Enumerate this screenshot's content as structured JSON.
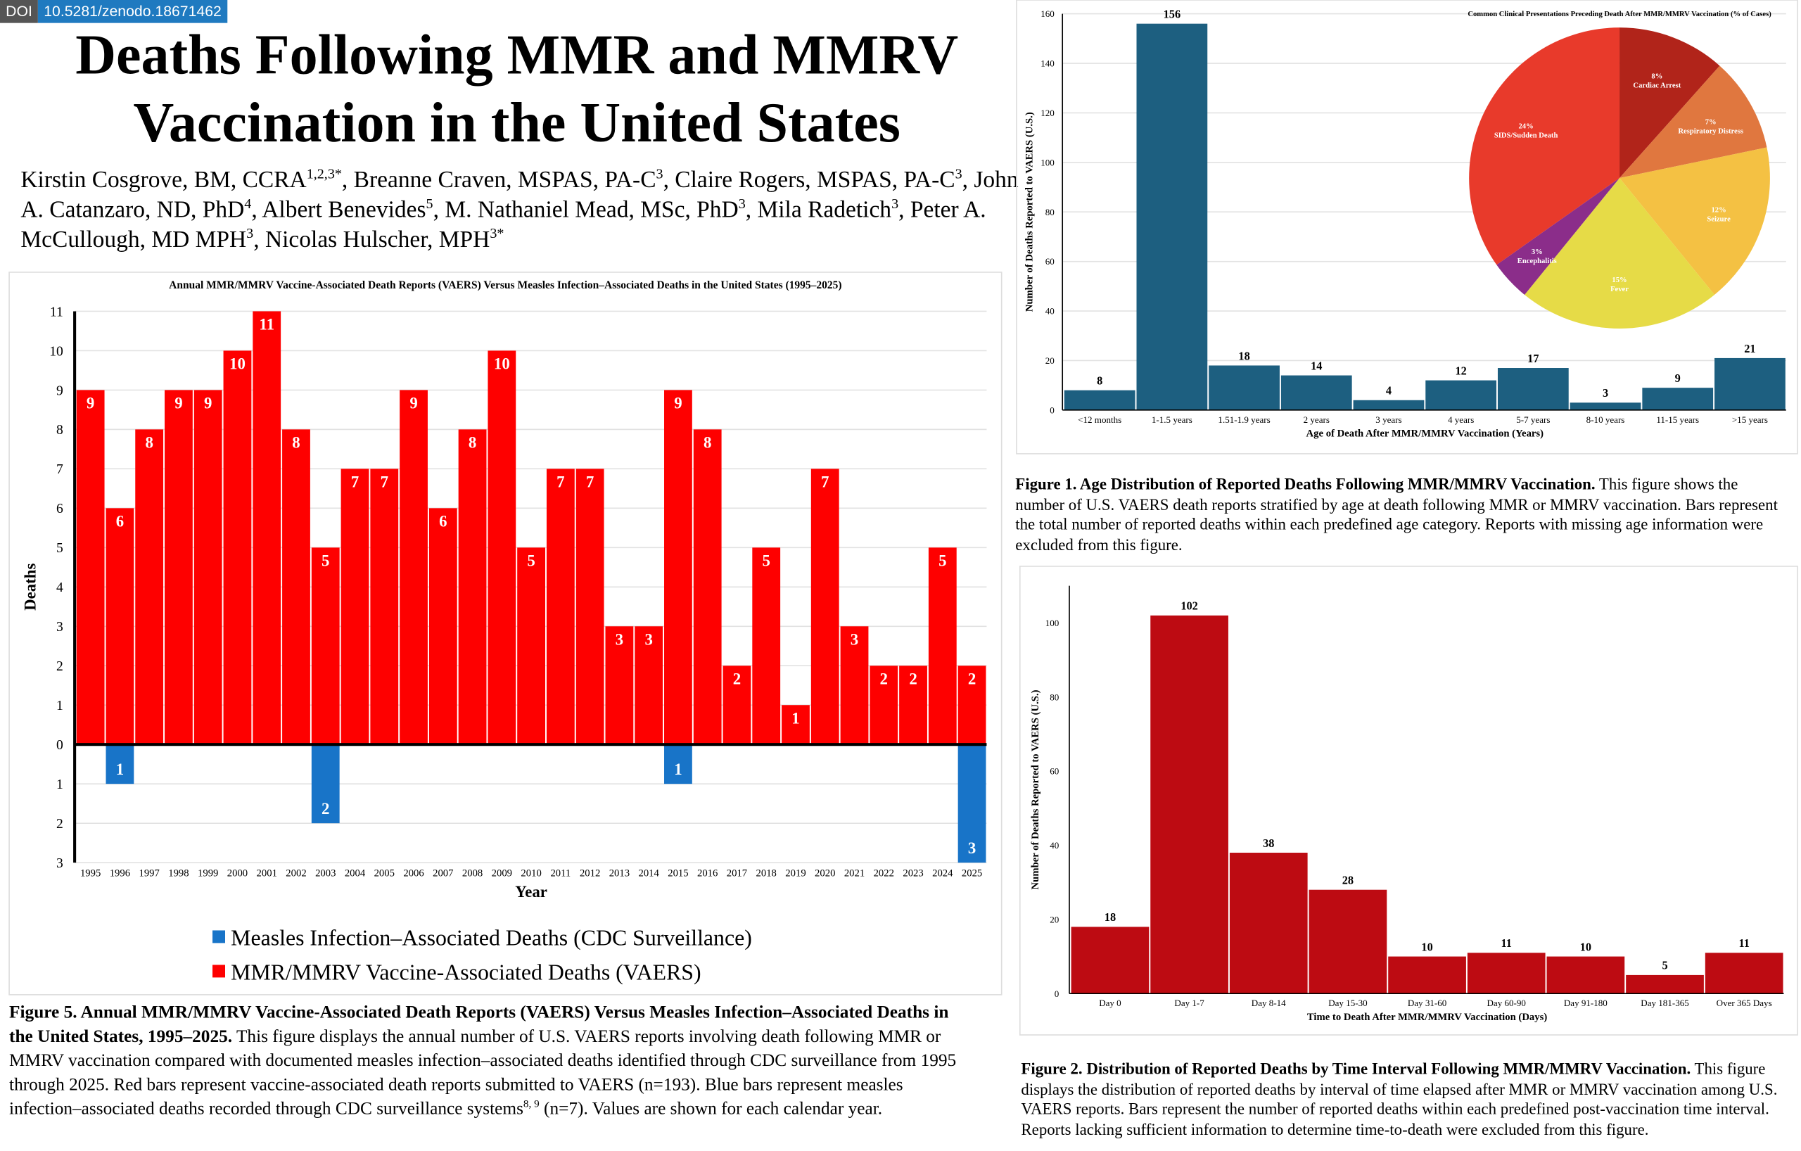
{
  "header": {
    "doi_label": "DOI",
    "doi": "10.5281/zenodo.18671462",
    "title": "Deaths Following MMR and MMRV Vaccination in the United States",
    "authors": [
      {
        "name": "Kirstin Cosgrove, BM, CCRA",
        "sup": "1,2,3*"
      },
      {
        "name": "Breanne Craven, MSPAS, PA-C",
        "sup": "3"
      },
      {
        "name": "Claire Rogers, MSPAS, PA-C",
        "sup": "3"
      },
      {
        "name": "John A. Catanzaro, ND, PhD",
        "sup": "4"
      },
      {
        "name": "Albert Benevides",
        "sup": "5"
      },
      {
        "name": "M. Nathaniel Mead, MSc, PhD",
        "sup": "3"
      },
      {
        "name": "Mila Radetich",
        "sup": "3"
      },
      {
        "name": "Peter A. McCullough, MD MPH",
        "sup": "3"
      },
      {
        "name": "Nicolas Hulscher, MPH",
        "sup": "3*"
      }
    ]
  },
  "chart_data": [
    {
      "type": "bar",
      "title": "Annual MMR/MMRV Vaccine-Associated Death Reports (VAERS) Versus Measles Infection–Associated Deaths in the United States (1995–2025)",
      "xlabel": "Year",
      "ylabel": "Deaths",
      "categories": [
        "1995",
        "1996",
        "1997",
        "1998",
        "1999",
        "2000",
        "2001",
        "2002",
        "2003",
        "2004",
        "2005",
        "2006",
        "2007",
        "2008",
        "2009",
        "2010",
        "2011",
        "2012",
        "2013",
        "2014",
        "2015",
        "2016",
        "2017",
        "2018",
        "2019",
        "2020",
        "2021",
        "2022",
        "2023",
        "2024",
        "2025"
      ],
      "series": [
        {
          "name": "Measles Infection–Associated Deaths (CDC Surveillance)",
          "color": "#1874c8",
          "direction": "down",
          "values": [
            null,
            1,
            null,
            null,
            null,
            null,
            null,
            null,
            2,
            null,
            null,
            null,
            null,
            null,
            null,
            null,
            null,
            null,
            null,
            null,
            1,
            null,
            null,
            null,
            null,
            null,
            null,
            null,
            null,
            null,
            3
          ]
        },
        {
          "name": "MMR/MMRV Vaccine-Associated Deaths (VAERS)",
          "color": "#fe0000",
          "direction": "up",
          "values": [
            9,
            6,
            8,
            9,
            9,
            10,
            11,
            8,
            5,
            7,
            7,
            9,
            6,
            8,
            10,
            5,
            7,
            7,
            3,
            3,
            9,
            8,
            2,
            5,
            1,
            7,
            3,
            2,
            2,
            5,
            2
          ]
        }
      ],
      "ylim": [
        -3,
        11
      ],
      "yticks": [
        {
          "value": -3,
          "label": "3"
        },
        {
          "value": -2,
          "label": "2"
        },
        {
          "value": -1,
          "label": "1"
        },
        0,
        1,
        2,
        3,
        4,
        5,
        6,
        7,
        8,
        9,
        10,
        11
      ],
      "grid": true,
      "value_label_position": "inside",
      "caption": {
        "lead": "Figure 5. Annual MMR/MMRV Vaccine-Associated Death Reports (VAERS) Versus Measles Infection–Associated Deaths in the United States, 1995–2025.",
        "body": " This figure displays the annual number of U.S. VAERS reports involving death following MMR or MMRV vaccination compared with documented measles infection–associated deaths identified through CDC surveillance from 1995 through 2025. Red bars represent vaccine-associated death reports submitted to VAERS (n=193). Blue bars represent measles infection–associated deaths recorded through CDC surveillance systems",
        "sup": "8, 9",
        "tail": " (n=7). Values are shown for each calendar year."
      }
    },
    {
      "type": "bar",
      "xlabel": "Age of Death After MMR/MMRV Vaccination (Years)",
      "ylabel": "Number of Deaths Reported to VAERS (U.S.)",
      "categories": [
        "<12 months",
        "1-1.5 years",
        "1.51-1.9 years",
        "2 years",
        "3 years",
        "4 years",
        "5-7 years",
        "8-10 years",
        "11-15 years",
        ">15 years"
      ],
      "values": [
        8,
        156,
        18,
        14,
        4,
        12,
        17,
        3,
        9,
        21
      ],
      "color": "#1d5f80",
      "ylim": [
        0,
        160
      ],
      "yticks": [
        0,
        20,
        40,
        60,
        80,
        100,
        120,
        140,
        160
      ],
      "grid": true,
      "value_label_position": "above",
      "caption": {
        "lead": "Figure 1. Age Distribution of Reported Deaths Following MMR/MMRV Vaccination.",
        "body": " This figure shows the number of U.S. VAERS death reports stratified by age at death following MMR or MMRV vaccination. Bars represent the total number of reported deaths within each predefined age category. Reports with missing age information were excluded from this figure."
      }
    },
    {
      "type": "pie",
      "title": "Common Clinical Presentations Preceding Death After MMR/MMRV Vaccination (% of Cases)",
      "categories": [
        "Cardiac Arrest",
        "Respiratory Distress",
        "Seizure",
        "Fever",
        "Encephalitis",
        "SIDS/Sudden Death"
      ],
      "values": [
        8,
        7,
        12,
        15,
        3,
        24
      ],
      "value_labels": [
        "8%",
        "7%",
        "12%",
        "15%",
        "3%",
        "24%"
      ],
      "colors": [
        "#b1241a",
        "#e0773f",
        "#f4c143",
        "#e6db47",
        "#8b2d8a",
        "#e83a2b"
      ]
    },
    {
      "type": "bar",
      "xlabel": "Time to Death After MMR/MMRV Vaccination (Days)",
      "ylabel": "Number of Deaths Reported to VAERS (U.S.)",
      "categories": [
        "Day 0",
        "Day 1-7",
        "Day 8-14",
        "Day 15-30",
        "Day 31-60",
        "Day 60-90",
        "Day 91-180",
        "Day 181-365",
        "Over 365 Days"
      ],
      "values": [
        18,
        102,
        38,
        28,
        10,
        11,
        10,
        5,
        11
      ],
      "color": "#bd0b12",
      "ylim": [
        0,
        110
      ],
      "yticks": [
        0,
        20,
        40,
        60,
        80,
        100
      ],
      "grid": false,
      "value_label_position": "above",
      "caption": {
        "lead": "Figure 2. Distribution of Reported Deaths by Time Interval Following MMR/MMRV Vaccination.",
        "body": " This figure displays the distribution of reported deaths by interval of time elapsed after MMR or MMRV vaccination among U.S. VAERS reports. Bars represent the number of reported deaths within each predefined post-vaccination time interval. Reports lacking sufficient information to determine time-to-death were excluded from this figure."
      }
    }
  ]
}
